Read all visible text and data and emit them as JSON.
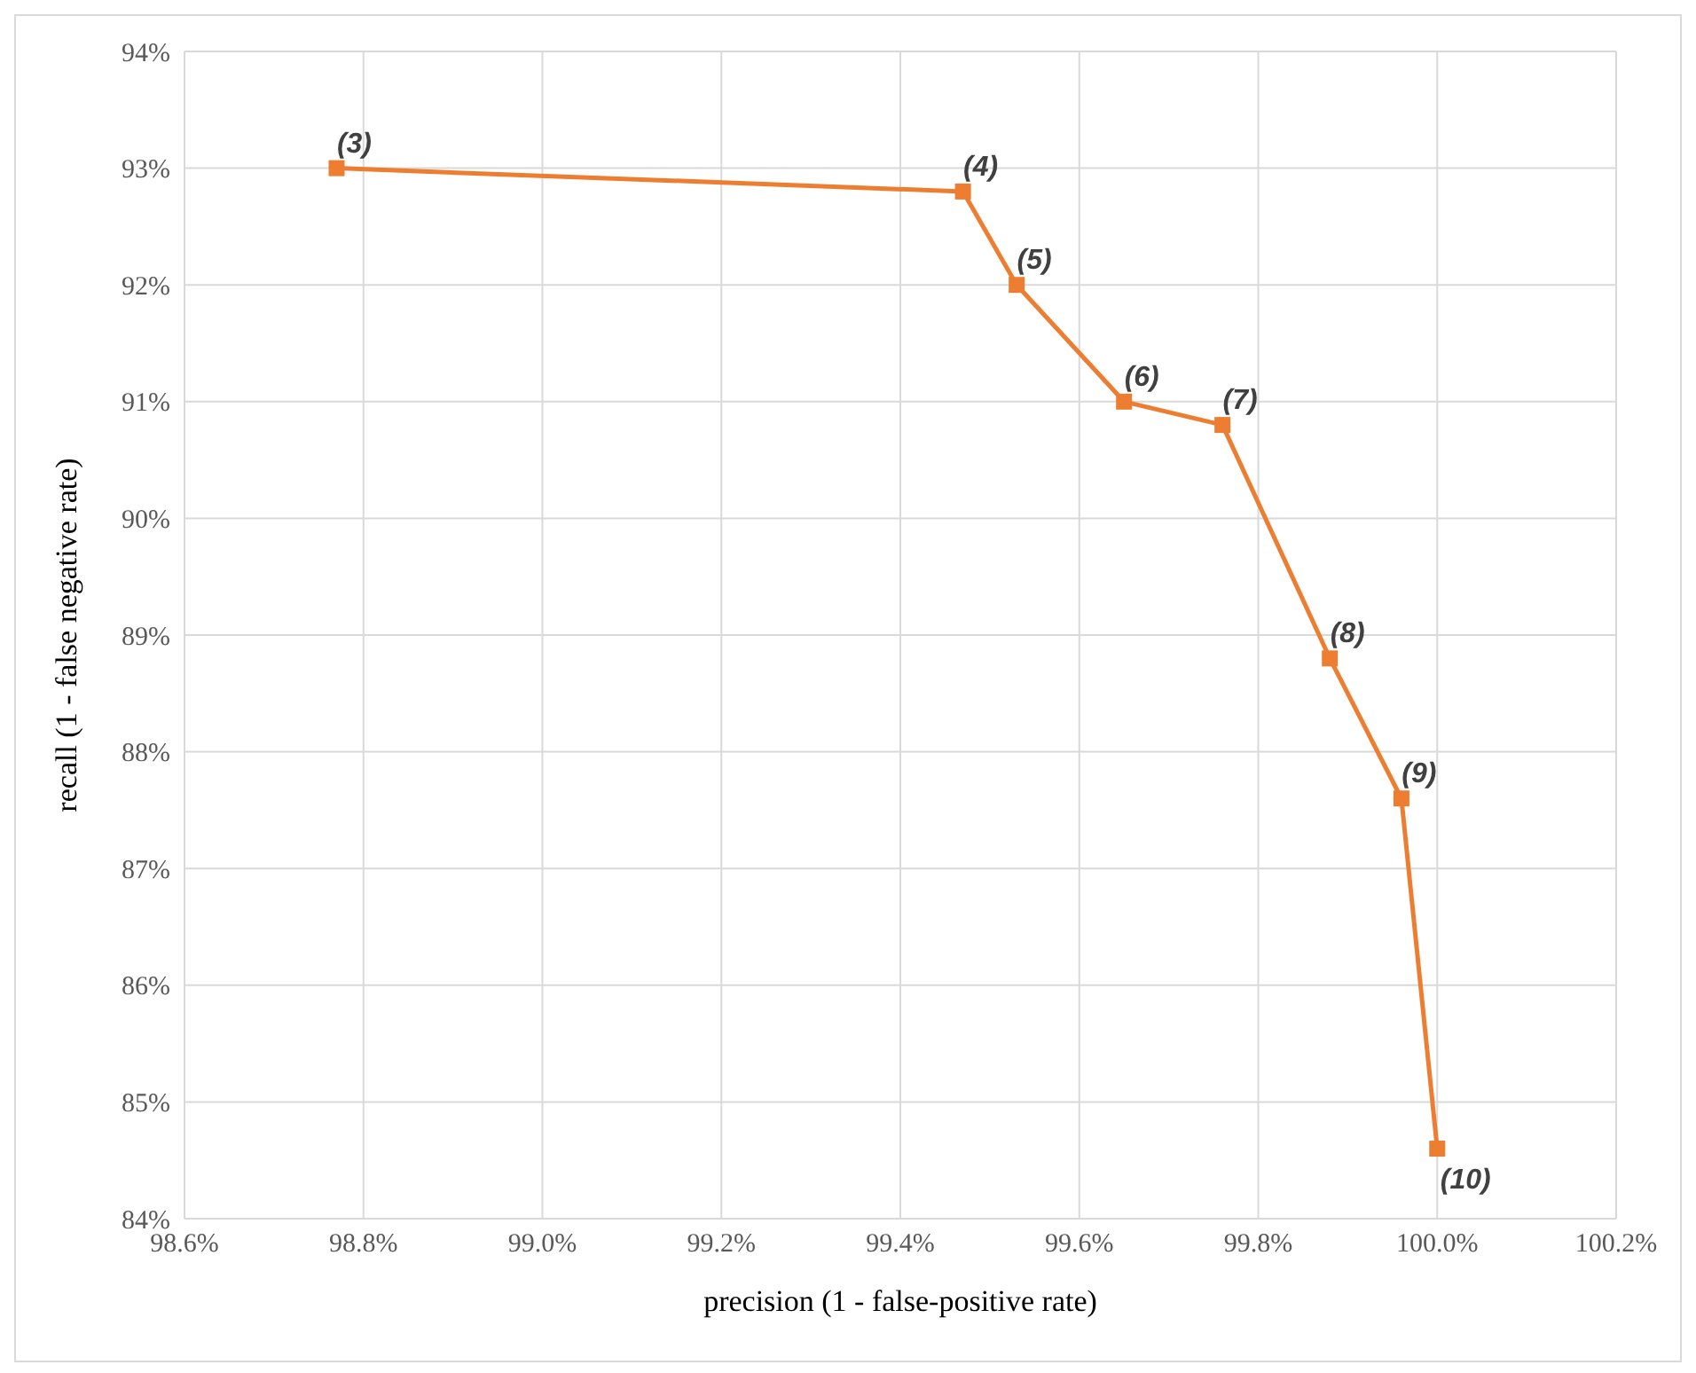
{
  "chart_data": {
    "type": "line",
    "xlabel": "precision (1 - false-positive rate)",
    "ylabel": "recall (1 - false negative rate)",
    "x": [
      98.77,
      99.47,
      99.53,
      99.65,
      99.76,
      99.88,
      99.96,
      100.0
    ],
    "series": [
      {
        "color": "#ed7d31",
        "values": [
          93.0,
          92.8,
          92.0,
          91.0,
          90.8,
          88.8,
          87.6,
          84.6
        ]
      }
    ],
    "xlim": [
      98.6,
      100.2
    ],
    "xticks": [
      {
        "value": 98.6,
        "label": "98.6%"
      },
      {
        "value": 98.8,
        "label": "98.8%"
      },
      {
        "value": 99.0,
        "label": "99.0%"
      },
      {
        "value": 99.2,
        "label": "99.2%"
      },
      {
        "value": 99.4,
        "label": "99.4%"
      },
      {
        "value": 99.6,
        "label": "99.6%"
      },
      {
        "value": 99.8,
        "label": "99.8%"
      },
      {
        "value": 100.0,
        "label": "100.0%"
      },
      {
        "value": 100.2,
        "label": "100.2%"
      }
    ],
    "ylim": [
      84,
      94
    ],
    "yticks": [
      {
        "value": 84,
        "label": "84%"
      },
      {
        "value": 85,
        "label": "85%"
      },
      {
        "value": 86,
        "label": "86%"
      },
      {
        "value": 87,
        "label": "87%"
      },
      {
        "value": 88,
        "label": "88%"
      },
      {
        "value": 89,
        "label": "89%"
      },
      {
        "value": 90,
        "label": "90%"
      },
      {
        "value": 91,
        "label": "91%"
      },
      {
        "value": 92,
        "label": "92%"
      },
      {
        "value": 93,
        "label": "93%"
      },
      {
        "value": 94,
        "label": "94%"
      }
    ],
    "grid": true,
    "marker": "square",
    "line_style": "solid",
    "annotations": [
      {
        "text": "(3)",
        "x": 98.77,
        "y": 93.0
      },
      {
        "text": "(4)",
        "x": 99.47,
        "y": 92.8
      },
      {
        "text": "(5)",
        "x": 99.53,
        "y": 92.0
      },
      {
        "text": "(6)",
        "x": 99.65,
        "y": 91.0
      },
      {
        "text": "(7)",
        "x": 99.76,
        "y": 90.8
      },
      {
        "text": "(8)",
        "x": 99.88,
        "y": 88.8
      },
      {
        "text": "(9)",
        "x": 99.96,
        "y": 87.6
      },
      {
        "text": "(10)",
        "x": 100.0,
        "y": 84.6
      }
    ]
  }
}
